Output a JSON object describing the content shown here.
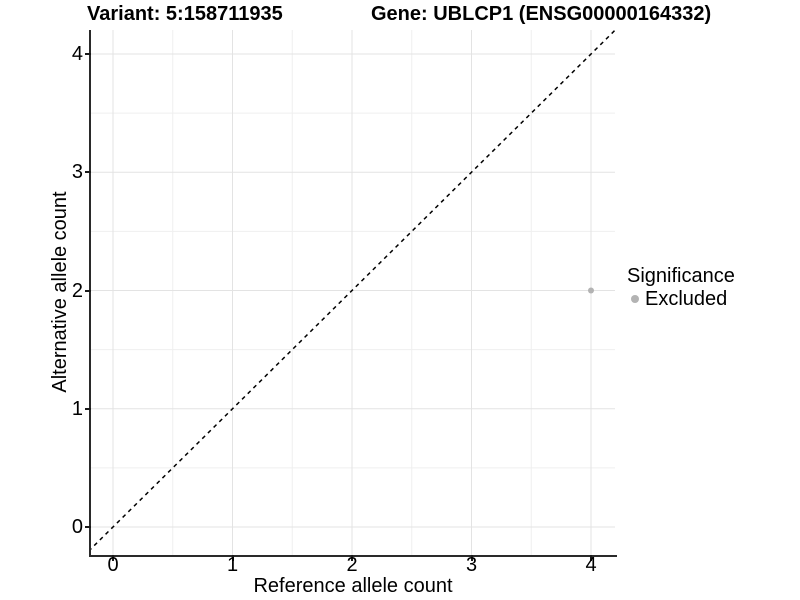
{
  "chart_data": {
    "type": "scatter",
    "titles": {
      "variant": "Variant: 5:158711935",
      "gene": "Gene: UBLCP1 (ENSG00000164332)"
    },
    "xlabel": "Reference allele count",
    "ylabel": "Alternative allele count",
    "x_ticks": [
      0,
      1,
      2,
      3,
      4
    ],
    "y_ticks": [
      0,
      1,
      2,
      3,
      4
    ],
    "xlim": [
      -0.19,
      4.2
    ],
    "ylim": [
      -0.24,
      4.2
    ],
    "grid": {
      "major": [
        0,
        1,
        2,
        3,
        4
      ],
      "minor": [
        0.5,
        1.5,
        2.5,
        3.5
      ],
      "major_color": "#e3e3e3",
      "minor_color": "#efefef"
    },
    "identity_line": {
      "equation": "y = x",
      "style": "dashed",
      "color": "#000000"
    },
    "legend": {
      "title": "Significance",
      "items": [
        {
          "label": "Excluded",
          "color": "#b3b3b3"
        }
      ]
    },
    "series": [
      {
        "name": "Excluded",
        "color": "#b3b3b3",
        "points": [
          {
            "x": 4,
            "y": 2
          }
        ]
      }
    ]
  }
}
